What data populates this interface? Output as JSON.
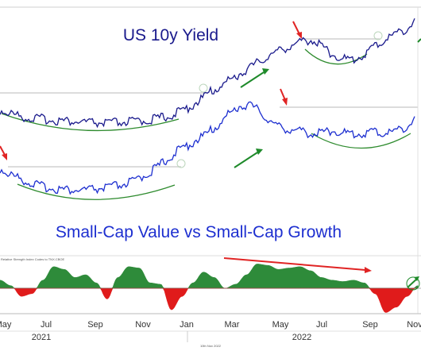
{
  "chart_data": [
    {
      "type": "line",
      "title": "US 10y Yield",
      "series": [
        {
          "color": "#1a1a8c",
          "values": [
            1.35,
            1.25,
            1.15,
            1.1,
            1.08,
            1.05,
            1.02,
            1.0,
            0.98,
            0.96,
            0.95,
            0.96,
            0.98,
            1.0,
            1.03,
            1.08,
            1.15,
            1.25,
            1.4,
            1.6,
            1.85,
            2.05,
            2.25,
            2.45,
            2.65,
            2.85,
            3.05,
            3.2,
            3.35,
            3.45,
            3.55,
            3.35,
            3.1,
            2.95,
            2.9,
            3.05,
            3.3,
            3.5,
            3.7,
            3.85,
            4.05
          ]
        }
      ]
    },
    {
      "type": "line",
      "series": [
        {
          "color": "#1d2fd0",
          "values": [
            1.55,
            1.4,
            1.3,
            1.2,
            1.12,
            1.08,
            1.05,
            1.03,
            1.03,
            1.05,
            1.08,
            1.12,
            1.18,
            1.25,
            1.4,
            1.55,
            1.75,
            1.95,
            2.1,
            2.25,
            2.4,
            2.6,
            2.85,
            3.05,
            3.1,
            2.95,
            2.7,
            2.55,
            2.5,
            2.45,
            2.4,
            2.42,
            2.48,
            2.42,
            2.38,
            2.4,
            2.45,
            2.4,
            2.45,
            2.55,
            2.7
          ]
        }
      ]
    },
    {
      "type": "area",
      "title": "Small-Cap Value vs Small-Cap Growth",
      "series": [
        {
          "color_positive": "#2e8b3a",
          "color_negative": "#e01b1b",
          "values": [
            0.3,
            0.1,
            -0.3,
            -0.2,
            0.3,
            0.8,
            0.7,
            0.4,
            0.5,
            0.2,
            -0.4,
            0.4,
            0.8,
            0.75,
            0.2,
            0.15,
            -0.8,
            -0.3,
            0.2,
            0.6,
            0.4,
            0.0,
            0.15,
            0.5,
            0.9,
            0.85,
            0.7,
            0.75,
            0.8,
            0.65,
            0.4,
            0.3,
            0.25,
            0.3,
            0.2,
            -0.2,
            -0.9,
            -0.7,
            -0.3,
            0.1
          ]
        }
      ],
      "subtitle": "Relative Strength Index Codes to TNX.CBOE"
    }
  ],
  "x_axis": {
    "tick_labels": [
      "May",
      "Jul",
      "Sep",
      "Nov",
      "Jan",
      "Mar",
      "May",
      "Jul",
      "Sep",
      "Nov"
    ],
    "years": [
      "2021",
      "2022"
    ],
    "footer_date": "10th Nov 2022"
  },
  "colors": {
    "arrow_down": "#e02424",
    "arrow_up": "#1e8a2a",
    "base_arc": "#2e8b2e",
    "resistance_line": "#dcdcdc"
  }
}
